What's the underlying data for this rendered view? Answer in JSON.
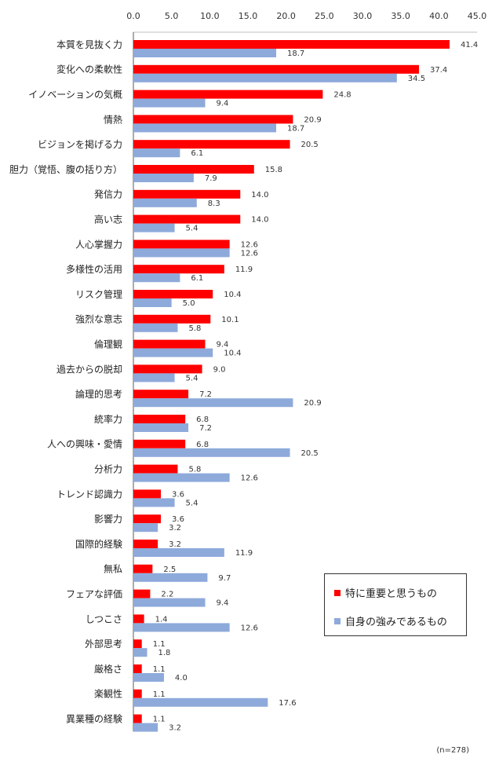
{
  "chart_data": {
    "type": "bar",
    "orientation": "horizontal",
    "categories": [
      "本質を見抜く力",
      "変化への柔軟性",
      "イノベーションの気概",
      "情熱",
      "ビジョンを掲げる力",
      "胆力（覚悟、腹の括り方）",
      "発信力",
      "高い志",
      "人心掌握力",
      "多様性の活用",
      "リスク管理",
      "強烈な意志",
      "倫理観",
      "過去からの脱却",
      "論理的思考",
      "統率力",
      "人への興味・愛情",
      "分析力",
      "トレンド認識力",
      "影響力",
      "国際的経験",
      "無私",
      "フェアな評価",
      "しつこさ",
      "外部思考",
      "厳格さ",
      "楽観性",
      "異業種の経験"
    ],
    "series": [
      {
        "name": "特に重要と思うもの",
        "color": "#ff0000",
        "values": [
          41.4,
          37.4,
          24.8,
          20.9,
          20.5,
          15.8,
          14.0,
          14.0,
          12.6,
          11.9,
          10.4,
          10.1,
          9.4,
          9.0,
          7.2,
          6.8,
          6.8,
          5.8,
          3.6,
          3.6,
          3.2,
          2.5,
          2.2,
          1.4,
          1.1,
          1.1,
          1.1,
          1.1
        ]
      },
      {
        "name": "自身の強みであるもの",
        "color": "#8eaadb",
        "values": [
          18.7,
          34.5,
          9.4,
          18.7,
          6.1,
          7.9,
          8.3,
          5.4,
          12.6,
          6.1,
          5.0,
          5.8,
          10.4,
          5.4,
          20.9,
          7.2,
          20.5,
          12.6,
          5.4,
          3.2,
          11.9,
          9.7,
          9.4,
          12.6,
          1.8,
          4.0,
          17.6,
          3.2
        ]
      }
    ],
    "xlim": [
      0,
      45
    ],
    "xticks": [
      "0.0",
      "5.0",
      "10.0",
      "15.0",
      "20.0",
      "25.0",
      "30.0",
      "35.0",
      "40.0",
      "45.0"
    ],
    "tick_step": 5,
    "grid": false,
    "legend_position": "bottom-right",
    "note": "(n=278)"
  }
}
